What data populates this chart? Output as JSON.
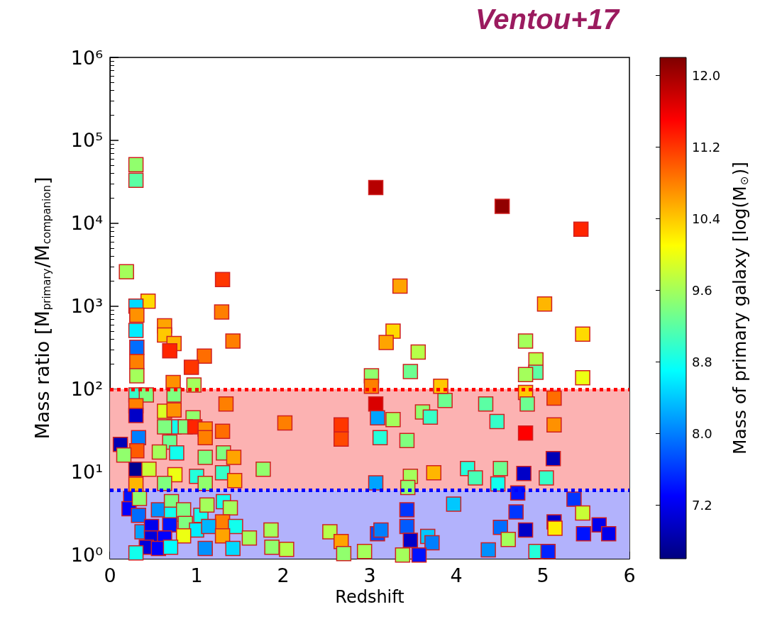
{
  "chart_data": {
    "type": "scatter",
    "title": "Ventou+17",
    "xlabel": "Redshift",
    "ylabel": "Mass ratio [M$_{primary}$/M$_{companion}$]",
    "clabel": "Mass of primary galaxy [log(M$_{⊙}$)]",
    "x": [
      0.3,
      0.3,
      0.19,
      3.07,
      4.53,
      5.44,
      1.3,
      1.29,
      1.42,
      0.44,
      3.35,
      5.02,
      4.8,
      5.46,
      4.92,
      4.92,
      4.8,
      5.46,
      4.8,
      4.82,
      5.13,
      5.13,
      4.8,
      5.12,
      4.34,
      4.47,
      3.87,
      4.13,
      4.22,
      4.51,
      4.48,
      4.78,
      5.04,
      3.97,
      4.71,
      4.69,
      4.51,
      4.6,
      4.8,
      5.13,
      5.14,
      5.36,
      5.46,
      5.47,
      5.65,
      5.76,
      4.37,
      4.92,
      5.06,
      3.27,
      3.19,
      3.56,
      3.47,
      3.02,
      3.02,
      3.07,
      3.09,
      3.27,
      3.12,
      3.43,
      3.82,
      3.61,
      3.7,
      3.74,
      3.47,
      3.44,
      3.07,
      2.02,
      2.67,
      2.67,
      1.77,
      1.86,
      1.87,
      2.04,
      2.54,
      2.67,
      2.7,
      2.94,
      3.09,
      3.13,
      3.43,
      3.43,
      3.47,
      3.67,
      3.72,
      3.38,
      3.57,
      0.3,
      0.31,
      0.3,
      0.31,
      0.31,
      0.31,
      0.63,
      0.63,
      0.74,
      0.69,
      1.09,
      0.94,
      0.73,
      0.97,
      0.3,
      0.42,
      0.74,
      1.34,
      0.3,
      0.63,
      0.74,
      0.3,
      0.96,
      0.74,
      0.63,
      0.87,
      0.98,
      1.1,
      1.3,
      0.33,
      0.12,
      1.1,
      0.69,
      1.31,
      1.43,
      0.31,
      0.57,
      0.77,
      0.16,
      1.1,
      0.3,
      0.45,
      0.75,
      1.0,
      1.3,
      1.44,
      0.3,
      0.63,
      1.1,
      0.24,
      0.22,
      0.33,
      0.34,
      0.56,
      0.71,
      0.71,
      0.85,
      1.05,
      1.12,
      1.31,
      1.39,
      1.3,
      0.37,
      0.48,
      0.69,
      0.87,
      1.0,
      1.14,
      1.45,
      1.3,
      0.48,
      0.63,
      0.85,
      1.61,
      0.42,
      0.56,
      0.7,
      1.1,
      1.42,
      0.3
    ],
    "values": [
      51000,
      33000,
      2600,
      27000,
      16000,
      8500,
      2100,
      850,
      380,
      1150,
      1750,
      1060,
      380,
      460,
      225,
      160,
      150,
      137,
      91,
      66,
      78,
      37,
      29.5,
      14.5,
      66,
      40.6,
      73,
      11,
      8.5,
      11,
      7.2,
      9.6,
      8.5,
      4.1,
      5.6,
      3.3,
      2.15,
      1.54,
      2.0,
      2.5,
      2.1,
      4.7,
      3.2,
      1.8,
      2.3,
      1.8,
      1.15,
      1.1,
      1.1,
      500,
      365,
      280,
      163,
      145,
      108,
      66,
      45,
      43,
      26,
      24,
      108,
      53,
      46,
      9.8,
      8.9,
      6.5,
      7.4,
      39,
      37,
      25,
      10.8,
      2.0,
      1.24,
      1.17,
      1.9,
      1.45,
      1.04,
      1.1,
      1.8,
      2.0,
      3.5,
      2.2,
      1.5,
      1.67,
      1.4,
      1.0,
      1.0,
      1000,
      780,
      510,
      320,
      215,
      145,
      580,
      450,
      355,
      290,
      250,
      183,
      120,
      112,
      85,
      85,
      85,
      66,
      63,
      54,
      56,
      48,
      45,
      35,
      35,
      35,
      35,
      33,
      31,
      26,
      21.5,
      26,
      23,
      17,
      15,
      18,
      17.4,
      17,
      16,
      15,
      10.8,
      10.8,
      9.3,
      8.9,
      9.8,
      7.9,
      7.1,
      7.3,
      7.3,
      4.8,
      3.6,
      3.0,
      4.8,
      3.5,
      4.4,
      3.1,
      3.5,
      3.0,
      4.0,
      4.4,
      3.7,
      2.5,
      1.9,
      2.2,
      2.3,
      2.4,
      2.0,
      2.2,
      2.2,
      1.7,
      1.6,
      1.6,
      1.7,
      1.6,
      1.24,
      1.2,
      1.24,
      1.2,
      1.2,
      1.06
    ],
    "cvalues": [
      9.5,
      9.2,
      9.6,
      11.9,
      12.1,
      11.3,
      11.2,
      10.8,
      10.8,
      10.3,
      10.6,
      10.5,
      9.6,
      10.3,
      9.7,
      9.2,
      9.6,
      10.0,
      10.4,
      9.3,
      10.9,
      10.7,
      11.5,
      6.9,
      9.2,
      9.0,
      9.3,
      8.9,
      9.1,
      9.3,
      8.8,
      7.0,
      9.0,
      8.4,
      7.4,
      7.6,
      7.9,
      9.6,
      7.0,
      7.0,
      10.2,
      7.6,
      9.8,
      7.4,
      7.2,
      7.2,
      8.1,
      8.9,
      7.5,
      10.3,
      10.6,
      9.7,
      9.3,
      9.5,
      10.8,
      11.7,
      8.2,
      9.6,
      8.9,
      9.4,
      10.4,
      9.5,
      9.0,
      10.5,
      9.6,
      9.5,
      8.2,
      10.8,
      11.2,
      11.1,
      9.5,
      9.6,
      9.5,
      9.7,
      9.7,
      10.6,
      9.5,
      9.6,
      7.7,
      8.0,
      7.6,
      7.8,
      7.0,
      8.4,
      8.0,
      9.6,
      7.4,
      8.5,
      10.7,
      8.6,
      7.9,
      10.8,
      9.6,
      10.6,
      10.4,
      10.5,
      11.3,
      10.9,
      11.2,
      10.7,
      9.6,
      9.0,
      9.4,
      9.4,
      10.8,
      10.8,
      9.9,
      10.7,
      7.0,
      9.5,
      8.8,
      9.4,
      9.4,
      11.3,
      10.7,
      10.9,
      8.0,
      6.9,
      10.8,
      9.3,
      9.4,
      10.6,
      11.0,
      9.6,
      8.8,
      9.5,
      9.4,
      6.7,
      9.8,
      10.0,
      8.9,
      9.0,
      10.5,
      10.5,
      9.4,
      9.5,
      7.4,
      7.3,
      7.9,
      9.5,
      8.1,
      9.4,
      8.8,
      9.4,
      8.8,
      9.6,
      8.8,
      9.6,
      10.8,
      8.2,
      7.2,
      7.4,
      9.4,
      8.6,
      8.3,
      8.8,
      10.6,
      7.1,
      7.3,
      10.0,
      9.6,
      7.1,
      7.3,
      8.7,
      8.1,
      8.5,
      8.8
    ],
    "clim": [
      6.6,
      12.2
    ],
    "cticks": [
      {
        "value": 7.2,
        "label": "7.2"
      },
      {
        "value": 8,
        "label": "8.0"
      },
      {
        "value": 8.8,
        "label": "8.8"
      },
      {
        "value": 9.6,
        "label": "9.6"
      },
      {
        "value": 10.4,
        "label": "10.4"
      },
      {
        "value": 11.2,
        "label": "11.2"
      },
      {
        "value": 12,
        "label": "12.0"
      }
    ],
    "xlim": [
      0,
      6
    ],
    "xticks": [
      0,
      1,
      2,
      3,
      4,
      5,
      6
    ],
    "ylim": [
      0.9,
      1000000
    ],
    "yticks": [
      {
        "value": 1,
        "label": "10⁰"
      },
      {
        "value": 10,
        "label": "10¹"
      },
      {
        "value": 100,
        "label": "10²"
      },
      {
        "value": 1000,
        "label": "10³"
      },
      {
        "value": 10000,
        "label": "10⁴"
      },
      {
        "value": 100000,
        "label": "10⁵"
      },
      {
        "value": 1000000,
        "label": "10⁶"
      }
    ],
    "log": "y",
    "grid": false,
    "marker": "square",
    "ref_lines": [
      {
        "axis": "y",
        "value": 100,
        "color": "#ff0000",
        "line_style": "dotted"
      },
      {
        "axis": "y",
        "value": 6,
        "color": "#0000ff",
        "line_style": "dotted"
      }
    ],
    "bands": [
      {
        "axis": "y",
        "from": 6,
        "to": 100,
        "color": "#fcb2b2"
      },
      {
        "axis": "y",
        "from": 0.9,
        "to": 6,
        "color": "#b2b2fc"
      }
    ]
  }
}
